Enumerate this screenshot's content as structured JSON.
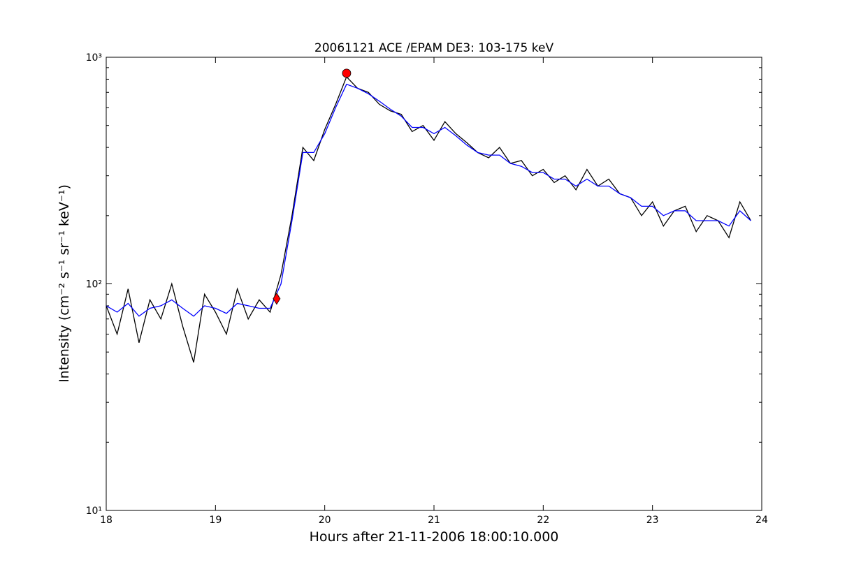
{
  "chart_data": {
    "type": "line",
    "title": "20061121 ACE /EPAM DE3: 103-175 keV",
    "x_label": "Hours after 21-11-2006 18:00:10.000",
    "y_label": "Intensity (cm⁻² s⁻¹ sr⁻¹ keV⁻¹)",
    "log_y": true,
    "xlim": [
      18,
      24
    ],
    "ylim": [
      10,
      1000
    ],
    "xticks": [
      18,
      19,
      20,
      21,
      22,
      23,
      24
    ],
    "yticks": [
      {
        "value": 10,
        "label": "10¹"
      },
      {
        "value": 100,
        "label": "10²"
      },
      {
        "value": 1000,
        "label": "10³"
      }
    ],
    "yminorticks": [
      20,
      30,
      40,
      50,
      60,
      70,
      80,
      90,
      200,
      300,
      400,
      500,
      600,
      700,
      800,
      900
    ],
    "x": [
      18.0,
      18.1,
      18.2,
      18.3,
      18.4,
      18.5,
      18.6,
      18.7,
      18.8,
      18.9,
      19.0,
      19.1,
      19.2,
      19.3,
      19.4,
      19.5,
      19.6,
      19.7,
      19.8,
      19.9,
      20.0,
      20.1,
      20.2,
      20.3,
      20.4,
      20.5,
      20.6,
      20.7,
      20.8,
      20.9,
      21.0,
      21.1,
      21.2,
      21.3,
      21.4,
      21.5,
      21.6,
      21.7,
      21.8,
      21.9,
      22.0,
      22.1,
      22.2,
      22.3,
      22.4,
      22.5,
      22.6,
      22.7,
      22.8,
      22.9,
      23.0,
      23.1,
      23.2,
      23.3,
      23.4,
      23.5,
      23.6,
      23.7,
      23.8,
      23.9
    ],
    "series": [
      {
        "color": "#000000",
        "values": [
          80,
          60,
          95,
          55,
          85,
          70,
          100,
          65,
          45,
          90,
          75,
          60,
          95,
          70,
          85,
          75,
          110,
          200,
          400,
          350,
          480,
          620,
          820,
          730,
          700,
          620,
          580,
          560,
          470,
          500,
          430,
          520,
          460,
          420,
          380,
          360,
          400,
          340,
          350,
          300,
          320,
          280,
          300,
          260,
          320,
          270,
          290,
          250,
          240,
          200,
          230,
          180,
          210,
          220,
          170,
          200,
          190,
          160,
          230,
          190
        ]
      },
      {
        "color": "#0000ff",
        "values": [
          80,
          75,
          82,
          72,
          78,
          80,
          85,
          78,
          72,
          80,
          78,
          74,
          82,
          80,
          78,
          78,
          100,
          190,
          380,
          380,
          460,
          600,
          760,
          730,
          690,
          640,
          590,
          550,
          490,
          490,
          460,
          490,
          450,
          410,
          380,
          370,
          370,
          340,
          330,
          310,
          310,
          290,
          290,
          270,
          290,
          270,
          270,
          250,
          240,
          220,
          220,
          200,
          210,
          210,
          190,
          190,
          190,
          180,
          210,
          190
        ]
      }
    ],
    "markers": [
      {
        "x": 19.56,
        "value": 86,
        "color": "#ff0000",
        "shape": "diamond"
      },
      {
        "x": 20.2,
        "value": 850,
        "color": "#ff0000",
        "shape": "circle"
      }
    ]
  }
}
